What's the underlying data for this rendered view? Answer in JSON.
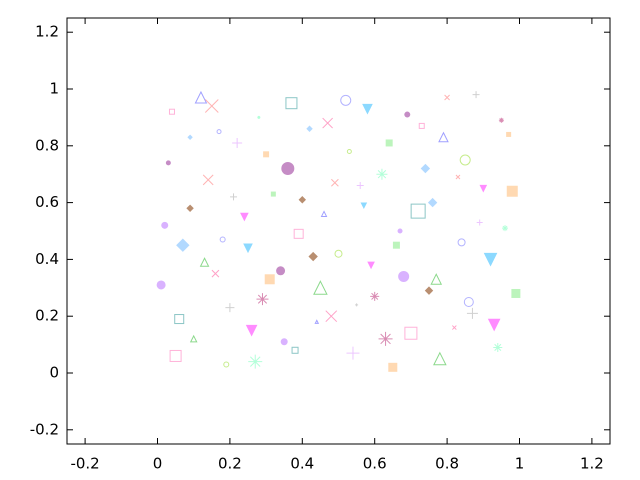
{
  "chart_data": {
    "type": "scatter",
    "xlim": [
      -0.25,
      1.25
    ],
    "ylim": [
      -0.25,
      1.25
    ],
    "xticks": [
      -0.2,
      0,
      0.2,
      0.4,
      0.6,
      0.8,
      1,
      1.2
    ],
    "yticks": [
      -0.2,
      0,
      0.2,
      0.4,
      0.6,
      0.8,
      1,
      1.2
    ],
    "x": [
      0.01,
      0.04,
      0.07,
      0.1,
      0.14,
      0.17,
      0.2,
      0.24,
      0.27,
      0.3,
      0.34,
      0.37,
      0.4,
      0.44,
      0.47,
      0.5,
      0.54,
      0.57,
      0.6,
      0.64,
      0.67,
      0.7,
      0.74,
      0.77,
      0.8,
      0.84,
      0.87,
      0.9,
      0.94,
      0.97,
      0.03,
      0.06,
      0.09,
      0.12,
      0.16,
      0.19,
      0.22,
      0.25,
      0.29,
      0.32,
      0.35,
      0.39,
      0.42,
      0.45,
      0.49,
      0.52,
      0.55,
      0.59,
      0.62,
      0.65,
      0.69,
      0.72,
      0.75,
      0.79,
      0.82,
      0.85,
      0.89,
      0.92,
      0.95,
      0.99,
      0.02,
      0.05,
      0.09,
      0.13,
      0.15,
      0.18,
      0.21,
      0.26,
      0.28,
      0.31,
      0.36,
      0.38,
      0.43,
      0.46,
      0.48,
      0.53,
      0.56,
      0.58,
      0.63,
      0.66,
      0.68,
      0.73,
      0.76,
      0.78,
      0.83,
      0.86,
      0.88,
      0.93,
      0.96,
      0.98
    ],
    "y": [
      0.31,
      0.92,
      0.45,
      0.12,
      0.68,
      0.85,
      0.23,
      0.55,
      0.04,
      0.77,
      0.36,
      0.95,
      0.61,
      0.18,
      0.88,
      0.42,
      0.07,
      0.59,
      0.27,
      0.81,
      0.5,
      0.14,
      0.72,
      0.33,
      0.97,
      0.46,
      0.21,
      0.65,
      0.09,
      0.84,
      0.74,
      0.19,
      0.58,
      0.97,
      0.35,
      0.03,
      0.81,
      0.44,
      0.26,
      0.63,
      0.11,
      0.49,
      0.86,
      0.3,
      0.67,
      0.96,
      0.24,
      0.38,
      0.7,
      0.02,
      0.91,
      0.57,
      0.29,
      0.83,
      0.16,
      0.75,
      0.53,
      0.4,
      0.89,
      0.28,
      0.52,
      0.06,
      0.83,
      0.39,
      0.94,
      0.47,
      0.62,
      0.15,
      0.9,
      0.33,
      0.72,
      0.08,
      0.41,
      0.56,
      0.2,
      0.78,
      0.66,
      0.93,
      0.12,
      0.45,
      0.34,
      0.87,
      0.6,
      0.05,
      0.69,
      0.25,
      0.98,
      0.17,
      0.51,
      0.64
    ],
    "sizes": [
      8,
      5,
      12,
      6,
      10,
      4,
      9,
      7,
      14,
      5,
      8,
      11,
      6,
      3,
      10,
      7,
      13,
      5,
      9,
      6,
      4,
      12,
      8,
      10,
      5,
      7,
      11,
      6,
      9,
      4,
      4,
      9,
      6,
      11,
      7,
      5,
      10,
      8,
      12,
      4,
      6,
      9,
      5,
      13,
      7,
      10,
      3,
      6,
      11,
      8,
      5,
      14,
      7,
      9,
      4,
      10,
      6,
      12,
      5,
      8,
      6,
      11,
      4,
      8,
      13,
      5,
      7,
      10,
      3,
      9,
      12,
      6,
      8,
      5,
      11,
      4,
      7,
      9,
      14,
      6,
      10,
      5,
      8,
      12,
      4,
      9,
      7,
      11,
      6,
      10
    ],
    "colors": [
      "#c080ff",
      "#ff80c0",
      "#80c0ff",
      "#40c040",
      "#ff8080",
      "#8080ff",
      "#b0b0b0",
      "#ff40ff",
      "#80ffc0",
      "#ffc080",
      "#a040a0",
      "#40a0a0",
      "#8b4513",
      "#6060ff",
      "#ff60a0",
      "#a0e040",
      "#e0a0ff",
      "#40c0ff",
      "#c04080",
      "#90ee90",
      "#c080ff",
      "#ff80c0",
      "#80c0ff",
      "#40c040",
      "#ff8080",
      "#8080ff",
      "#b0b0b0",
      "#ff40ff",
      "#80ffc0",
      "#ffc080",
      "#a040a0",
      "#40a0a0",
      "#8b4513",
      "#6060ff",
      "#ff60a0",
      "#a0e040",
      "#e0a0ff",
      "#40c0ff",
      "#c04080",
      "#90ee90",
      "#c080ff",
      "#ff80c0",
      "#80c0ff",
      "#40c040",
      "#ff8080",
      "#8080ff",
      "#b0b0b0",
      "#ff40ff",
      "#80ffc0",
      "#ffc080",
      "#a040a0",
      "#40a0a0",
      "#8b4513",
      "#6060ff",
      "#ff60a0",
      "#a0e040",
      "#e0a0ff",
      "#40c0ff",
      "#c04080",
      "#90ee90",
      "#c080ff",
      "#ff80c0",
      "#80c0ff",
      "#40c040",
      "#ff8080",
      "#8080ff",
      "#b0b0b0",
      "#ff40ff",
      "#80ffc0",
      "#ffc080",
      "#a040a0",
      "#40a0a0",
      "#8b4513",
      "#6060ff",
      "#ff60a0",
      "#a0e040",
      "#e0a0ff",
      "#40c0ff",
      "#c04080",
      "#90ee90",
      "#c080ff",
      "#ff80c0",
      "#80c0ff",
      "#40c040",
      "#ff8080",
      "#8080ff",
      "#b0b0b0",
      "#ff40ff",
      "#80ffc0",
      "#ffc080"
    ],
    "markers": [
      "circle",
      "square-open",
      "diamond",
      "triangle-up-open",
      "x",
      "circle-open",
      "plus",
      "triangle-down",
      "star",
      "square",
      "circle",
      "square-open",
      "diamond",
      "triangle-up-open",
      "x",
      "circle-open",
      "plus",
      "triangle-down",
      "star",
      "square",
      "circle",
      "square-open",
      "diamond",
      "triangle-up-open",
      "x",
      "circle-open",
      "plus",
      "triangle-down",
      "star",
      "square",
      "circle",
      "square-open",
      "diamond",
      "triangle-up-open",
      "x",
      "circle-open",
      "plus",
      "triangle-down",
      "star",
      "square",
      "circle",
      "square-open",
      "diamond",
      "triangle-up-open",
      "x",
      "circle-open",
      "plus",
      "triangle-down",
      "star",
      "square",
      "circle",
      "square-open",
      "diamond",
      "triangle-up-open",
      "x",
      "circle-open",
      "plus",
      "triangle-down",
      "star",
      "square",
      "circle",
      "square-open",
      "diamond",
      "triangle-up-open",
      "x",
      "circle-open",
      "plus",
      "triangle-down",
      "star",
      "square",
      "circle",
      "square-open",
      "diamond",
      "triangle-up-open",
      "x",
      "circle-open",
      "plus",
      "triangle-down",
      "star",
      "square",
      "circle",
      "square-open",
      "diamond",
      "triangle-up-open",
      "x",
      "circle-open",
      "plus",
      "triangle-down",
      "star",
      "square"
    ]
  }
}
